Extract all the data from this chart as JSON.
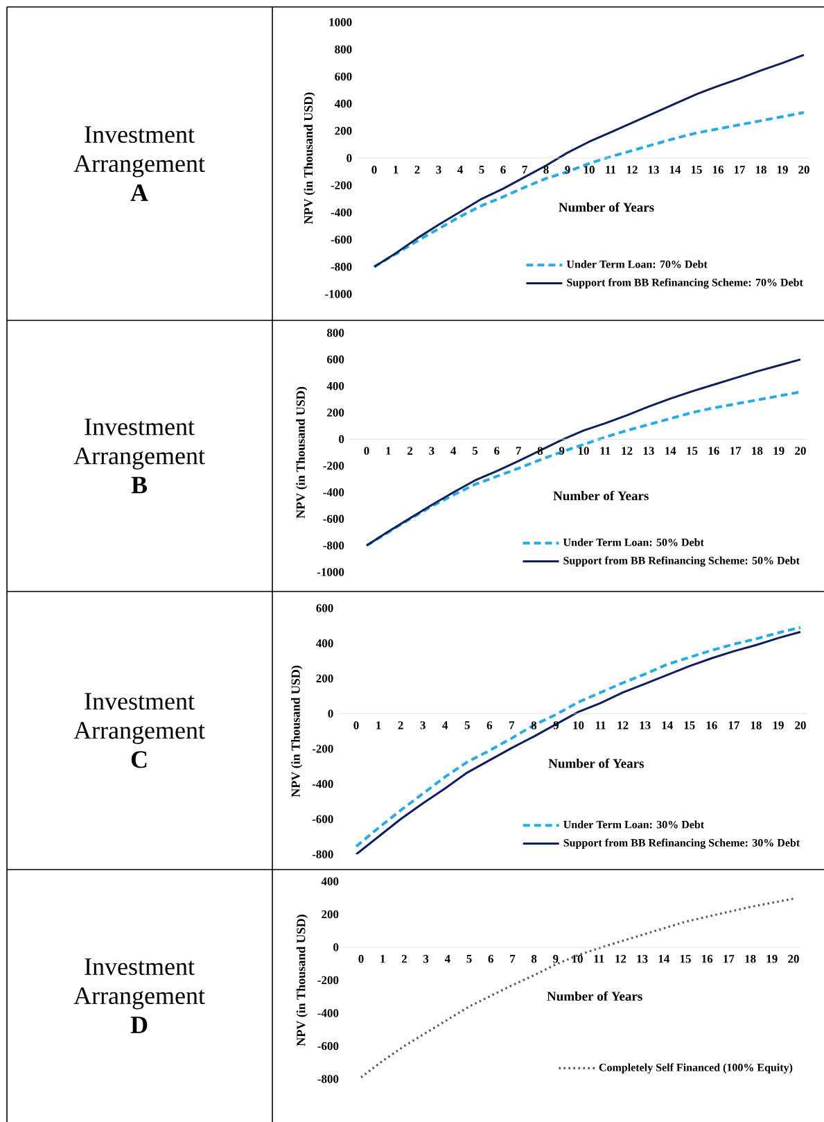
{
  "chart_data": [
    {
      "type": "line",
      "title": "Investment Arrangement **A**",
      "xlabel": "Number of Years",
      "ylabel": "NPV (in Thousand USD)",
      "categories": [
        "0",
        "1",
        "2",
        "3",
        "4",
        "5",
        "6",
        "7",
        "8",
        "9",
        "10",
        "11",
        "12",
        "13",
        "14",
        "15",
        "16",
        "17",
        "18",
        "19",
        "20"
      ],
      "ylim": [
        -1000,
        1000
      ],
      "yticks": [
        -1000,
        -800,
        -600,
        -400,
        -200,
        0,
        200,
        400,
        600,
        800,
        1000
      ],
      "legend": "bottom right",
      "series": [
        {
          "name": "Under Term Loan: 70% Debt",
          "color": "#29abe2",
          "line_style": "dashed",
          "values": [
            -800,
            -705,
            -610,
            -520,
            -430,
            -350,
            -285,
            -215,
            -150,
            -100,
            -40,
            10,
            55,
            100,
            145,
            185,
            215,
            245,
            275,
            305,
            335
          ]
        },
        {
          "name": "Support from BB Refinancing Scheme: 70% Debt",
          "color": "#0d1f5c",
          "line_style": "solid",
          "values": [
            -800,
            -700,
            -590,
            -490,
            -395,
            -300,
            -225,
            -140,
            -55,
            40,
            120,
            190,
            260,
            330,
            400,
            470,
            530,
            585,
            645,
            700,
            760
          ]
        }
      ]
    },
    {
      "type": "line",
      "title": "Investment Arrangement **B**",
      "xlabel": "Number of Years",
      "ylabel": "NPV (in Thousand USD)",
      "categories": [
        "0",
        "1",
        "2",
        "3",
        "4",
        "5",
        "6",
        "7",
        "8",
        "9",
        "10",
        "11",
        "12",
        "13",
        "14",
        "15",
        "16",
        "17",
        "18",
        "19",
        "20"
      ],
      "ylim": [
        -1000,
        800
      ],
      "yticks": [
        -1000,
        -800,
        -600,
        -400,
        -200,
        0,
        200,
        400,
        600,
        800
      ],
      "legend": "bottom right",
      "series": [
        {
          "name": "Under Term Loan: 50% Debt",
          "color": "#29abe2",
          "line_style": "dashed",
          "values": [
            -800,
            -700,
            -600,
            -505,
            -420,
            -340,
            -280,
            -220,
            -155,
            -95,
            -40,
            15,
            65,
            110,
            155,
            200,
            235,
            265,
            295,
            325,
            355
          ]
        },
        {
          "name": "Support from BB Refinancing Scheme: 50% Debt",
          "color": "#0d1f5c",
          "line_style": "solid",
          "values": [
            -800,
            -695,
            -595,
            -495,
            -400,
            -310,
            -240,
            -165,
            -85,
            -5,
            65,
            120,
            180,
            245,
            305,
            360,
            410,
            460,
            510,
            555,
            600
          ]
        }
      ]
    },
    {
      "type": "line",
      "title": "Investment Arrangement **C**",
      "xlabel": "Number of Years",
      "ylabel": "NPV (in Thousand USD)",
      "categories": [
        "0",
        "1",
        "2",
        "3",
        "4",
        "5",
        "6",
        "7",
        "8",
        "9",
        "10",
        "11",
        "12",
        "13",
        "14",
        "15",
        "16",
        "17",
        "18",
        "19",
        "20"
      ],
      "ylim": [
        -800,
        600
      ],
      "yticks": [
        -800,
        -600,
        -400,
        -200,
        0,
        200,
        400,
        600
      ],
      "legend": "bottom right",
      "series": [
        {
          "name": "Under Term Loan: 30% Debt",
          "color": "#29abe2",
          "line_style": "dashed",
          "values": [
            -755,
            -650,
            -550,
            -455,
            -360,
            -275,
            -210,
            -140,
            -65,
            -5,
            65,
            120,
            175,
            225,
            280,
            320,
            360,
            395,
            425,
            460,
            490
          ]
        },
        {
          "name": "Support from BB Refinancing Scheme: 30% Debt",
          "color": "#0d1f5c",
          "line_style": "solid",
          "values": [
            -800,
            -700,
            -600,
            -510,
            -425,
            -335,
            -265,
            -195,
            -130,
            -60,
            10,
            60,
            120,
            170,
            220,
            270,
            315,
            355,
            390,
            430,
            465
          ]
        }
      ]
    },
    {
      "type": "line",
      "title": "Investment Arrangement **D**",
      "xlabel": "Number of Years",
      "ylabel": "NPV (in Thousand USD)",
      "categories": [
        "0",
        "1",
        "2",
        "3",
        "4",
        "5",
        "6",
        "7",
        "8",
        "9",
        "10",
        "11",
        "12",
        "13",
        "14",
        "15",
        "16",
        "17",
        "18",
        "19",
        "20"
      ],
      "ylim": [
        -800,
        400
      ],
      "yticks": [
        -800,
        -600,
        -400,
        -200,
        0,
        200,
        400
      ],
      "legend": "bottom right",
      "series": [
        {
          "name": "Completely Self Financed (100% Equity)",
          "color": "#595959",
          "line_style": "dotted",
          "values": [
            -790,
            -690,
            -600,
            -520,
            -440,
            -360,
            -295,
            -230,
            -170,
            -105,
            -50,
            -5,
            35,
            75,
            115,
            155,
            185,
            215,
            245,
            270,
            295
          ]
        }
      ]
    }
  ]
}
